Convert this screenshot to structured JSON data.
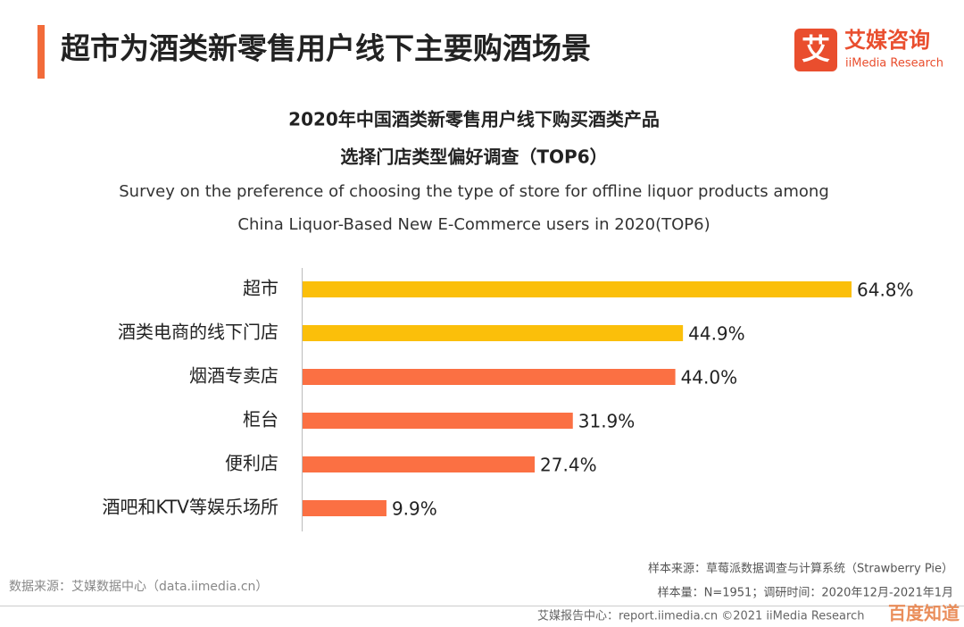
{
  "header": {
    "title": "超市为酒类新零售用户线下主要购酒场景",
    "logo_mark": "艾",
    "logo": "艾媒咨询",
    "logo_sub": "iiMedia Research"
  },
  "chart_data": {
    "type": "bar",
    "title": [
      "2020年中国酒类新零售用户线下购买酒类产品",
      "选择门店类型偏好调查（TOP6）"
    ],
    "subtitle": [
      "Survey on the preference of choosing the type of store for offline liquor products among",
      "China Liquor-Based New E-Commerce users in 2020(TOP6)"
    ],
    "categories": [
      "超市",
      "酒类电商的线下门店",
      "烟酒专卖店",
      "柜台",
      "便利店",
      "酒吧和KTV等娱乐场所"
    ],
    "values": [
      64.8,
      44.9,
      44.0,
      31.9,
      27.4,
      9.9
    ],
    "value_labels": [
      "64.8%",
      "44.9%",
      "44.0%",
      "31.9%",
      "27.4%",
      "9.9%"
    ],
    "colors": [
      "#fbbf0a",
      "#fbbf0a",
      "#fb7043",
      "#fb7043",
      "#fb7043",
      "#fb7043"
    ]
  },
  "footer": {
    "source": "数据来源：艾媒数据中心（data.iimedia.cn）",
    "sample_source": "样本来源：草莓派数据调查与计算系统（Strawberry Pie）",
    "sample_info": "样本量：N=1951；调研时间：2020年12月-2021年1月",
    "report_center": "艾媒报告中心：report.iimedia.cn  ©2021  iiMedia Research",
    "watermark": "百度知道"
  }
}
